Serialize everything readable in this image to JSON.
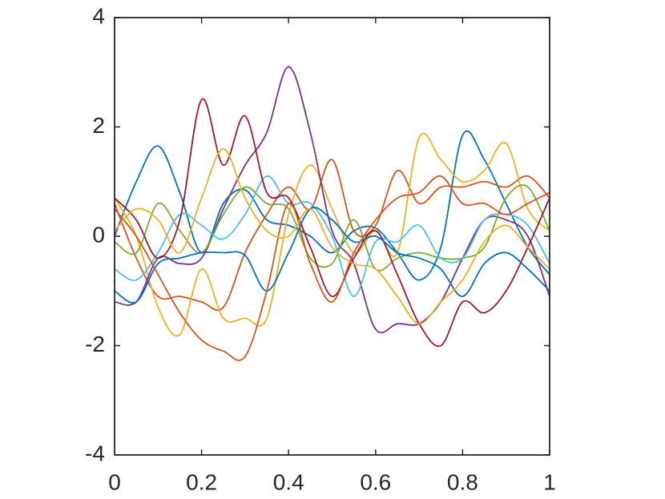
{
  "chart_data": {
    "type": "line",
    "x": [
      0,
      0.05,
      0.1,
      0.15,
      0.2,
      0.25,
      0.3,
      0.35,
      0.4,
      0.45,
      0.5,
      0.55,
      0.6,
      0.65,
      0.7,
      0.75,
      0.8,
      0.85,
      0.9,
      0.95,
      1
    ],
    "series": [
      {
        "color": "#0072BD",
        "values": [
          0,
          1.0,
          1.65,
          0.8,
          -0.3,
          0.6,
          0.85,
          0.3,
          0.2,
          0.0,
          -0.3,
          0.1,
          0.15,
          -0.3,
          -0.8,
          -0.2,
          1.85,
          1.4,
          0.6,
          -0.2,
          -0.7
        ]
      },
      {
        "color": "#D95319",
        "values": [
          0.6,
          -0.4,
          -1.1,
          -1.1,
          -1.2,
          -1.3,
          -0.3,
          0.4,
          0.9,
          0.5,
          1.4,
          0.1,
          0.2,
          1.2,
          0.6,
          0.9,
          0.9,
          1.0,
          0.9,
          1.1,
          0.7
        ]
      },
      {
        "color": "#EDB120",
        "values": [
          0.7,
          0,
          -1.3,
          -1.8,
          -0.6,
          -1.5,
          -1.5,
          -1.5,
          0.4,
          1.3,
          0.5,
          -0.3,
          0.1,
          -0.3,
          1.8,
          1.4,
          1.0,
          1.2,
          1.7,
          0.5,
          0.1
        ]
      },
      {
        "color": "#7E2F8E",
        "values": [
          -1.2,
          -1.2,
          -0.4,
          -0.5,
          -0.4,
          0.5,
          1.3,
          1.9,
          3.1,
          1.9,
          0.1,
          -0.5,
          -1.7,
          -1.6,
          -1.6,
          -1.2,
          -0.4,
          0.3,
          0.3,
          0,
          -1.1
        ]
      },
      {
        "color": "#77AC30",
        "values": [
          -0.1,
          -0.3,
          0.6,
          0.1,
          -0.3,
          0.4,
          0.9,
          0.6,
          0.5,
          -0.4,
          -0.5,
          0.3,
          -0.6,
          -0.4,
          -0.3,
          -0.4,
          -0.4,
          -0.2,
          0.7,
          0.9,
          0.1
        ]
      },
      {
        "color": "#4DBEEE",
        "values": [
          -0.6,
          -0.8,
          -0.3,
          0.4,
          0.2,
          -0.05,
          0.4,
          1.1,
          0.6,
          0.6,
          0,
          -1.1,
          -0.1,
          -0.1,
          0.2,
          -0.4,
          -0.4,
          0.3,
          0.4,
          0.2,
          -0.5
        ]
      },
      {
        "color": "#A2142F",
        "values": [
          0.7,
          0.3,
          -0.4,
          0.3,
          2.5,
          1.3,
          2.2,
          0.8,
          0.7,
          -0.2,
          -1.1,
          -0.4,
          0.1,
          -0.7,
          -1.6,
          -2.0,
          -1.2,
          -1.4,
          -1.0,
          -0.2,
          0.7
        ]
      },
      {
        "color": "#0072BD",
        "values": [
          -1.0,
          -1.2,
          -0.5,
          -0.4,
          -0.3,
          -0.3,
          -0.35,
          -1.0,
          -0.3,
          0.5,
          0.3,
          -0.1,
          0,
          -0.3,
          -0.4,
          -0.6,
          -1.1,
          -0.5,
          -0.3,
          -0.6,
          -1.0
        ]
      },
      {
        "color": "#D95319",
        "values": [
          0.5,
          0,
          -0.7,
          -1.4,
          -1.9,
          -2.1,
          -2.2,
          -1.0,
          0.6,
          -0.5,
          -1.2,
          -0.3,
          0.3,
          0.7,
          0.8,
          1.1,
          0.6,
          0.6,
          0.4,
          0.6,
          0.8
        ]
      },
      {
        "color": "#EDB120",
        "values": [
          0.1,
          0.5,
          0.3,
          -0.3,
          0.7,
          1.6,
          0.7,
          0.1,
          0,
          0.5,
          -0.2,
          -0.5,
          -0.6,
          -1.1,
          -1.6,
          -1.2,
          -0.8,
          -0.1,
          0.2,
          -0.2,
          -0.6
        ]
      }
    ],
    "xlim": [
      0,
      1
    ],
    "ylim": [
      -4,
      4
    ],
    "xticks": [
      0,
      0.2,
      0.4,
      0.6,
      0.8,
      1
    ],
    "yticks": [
      -4,
      -2,
      0,
      2,
      4
    ]
  }
}
